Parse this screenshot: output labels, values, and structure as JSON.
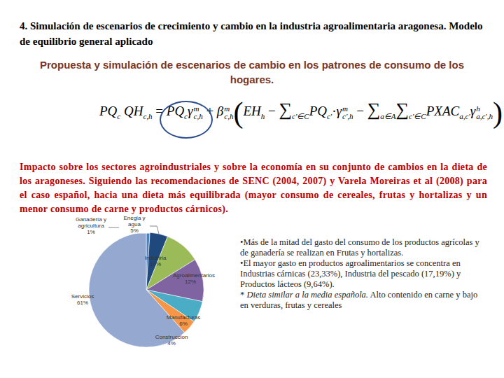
{
  "slide": {
    "heading": "4. Simulación de escenarios de crecimiento y cambio en la industria agroalimentaria aragonesa. Modelo de equilibrio general aplicado",
    "subtitle": "Propuesta y simulación de escenarios de cambio en los patrones de consumo de los hogares.",
    "formula": [
      {
        "text": "PQ",
        "sub": "c"
      },
      {
        "text": " QH",
        "sub": "c,h"
      },
      {
        "text": " = "
      },
      {
        "text": "PQ",
        "sub": "c"
      },
      {
        "text": "γ",
        "sup": "m",
        "sub": "c,h"
      },
      {
        "text": " + "
      },
      {
        "text": "β",
        "sup": "m",
        "sub": "c,h"
      },
      {
        "text": "("
      },
      {
        "text": "EH",
        "sub": "h"
      },
      {
        "text": " − "
      },
      {
        "text": "∑",
        "sub": "c'∈C"
      },
      {
        "text": "PQ",
        "sub": "c'"
      },
      {
        "text": "·"
      },
      {
        "text": "γ",
        "sup": "m",
        "sub": "c',h"
      },
      {
        "text": " − "
      },
      {
        "text": "∑",
        "sub": "a∈A"
      },
      {
        "text": "∑",
        "sub": "c'∈C"
      },
      {
        "text": "PXAC",
        "sub": "a,c'"
      },
      {
        "text": "γ",
        "sup": "h",
        "sub": "a,c',h"
      },
      {
        "text": ")"
      }
    ],
    "paragraph": "Impacto sobre los sectores agroindustriales y sobre la economía en su conjunto de cambios en la dieta de los aragoneses. Siguiendo las recomendaciones de SENC (2004, 2007) y Varela Moreiras et al (2008) para el caso español, hacia una dieta más equilibrada (mayor consumo de cereales, frutas y hortalizas y un menor consumo de carne y productos cárnicos).",
    "bullets": [
      {
        "text": "•Más de la mitad del gasto del consumo de los productos agrícolas y de ganadería se realizan en Frutas y hortalizas."
      },
      {
        "text": "•El mayor gasto en productos agroalimentarios se concentra en Industrias cárnicas (23,33%), Industria del pescado (17,19%) y Productos lácteos (9,64%)."
      },
      {
        "lead": "* ",
        "italic": "Dieta similar a la media española.",
        "text": " Alto contenido en carne y bajo en verduras, frutas y cereales"
      }
    ]
  },
  "chart_data": {
    "type": "pie",
    "categories": [
      "Ganadería y agricultura",
      "Enegia y agua",
      "Industria",
      "Agroalimentarios",
      "Manufacturas",
      "Construccion",
      "Servicios"
    ],
    "values": [
      1,
      5,
      10,
      12,
      6,
      4,
      61
    ],
    "value_labels": [
      "1%",
      "5%",
      "10%",
      "12%",
      "6%",
      "4%",
      "61%"
    ],
    "colors": [
      "#4f81bd",
      "#1f497d",
      "#9bbb59",
      "#8064a2",
      "#4bacc6",
      "#f79646",
      "#95a9d0"
    ],
    "data_labels": true
  }
}
